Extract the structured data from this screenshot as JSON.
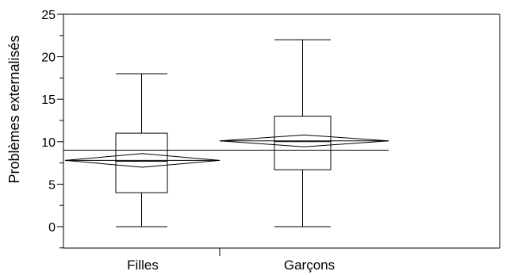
{
  "chart_data": {
    "type": "boxplot",
    "title": "",
    "xlabel": "",
    "ylabel": "Problèmes externalisés",
    "ylim": [
      -2.5,
      25
    ],
    "yticks": [
      0,
      5,
      10,
      15,
      20,
      25
    ],
    "grid": false,
    "categories": [
      "Filles",
      "Garçons"
    ],
    "groups": [
      {
        "name": "Filles",
        "min": 0,
        "q1": 4,
        "median": 7.7,
        "q3": 11,
        "max": 18,
        "mean": 7.8,
        "mean_ci": [
          7.0,
          8.6
        ]
      },
      {
        "name": "Garçons",
        "min": 0,
        "q1": 6.7,
        "median": 10,
        "q3": 13,
        "max": 22,
        "mean": 10.1,
        "mean_ci": [
          9.4,
          10.8
        ]
      }
    ],
    "grand_mean": 9.0
  }
}
